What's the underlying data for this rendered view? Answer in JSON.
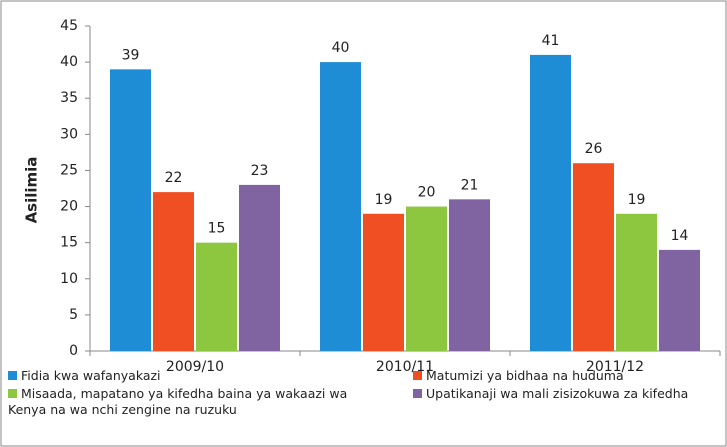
{
  "chart_data": {
    "type": "bar",
    "y_label": "Asilimia",
    "categories": [
      "2009/10",
      "2010/11",
      "2011/12"
    ],
    "series": [
      {
        "name": "Fidia kwa wafanyakazi",
        "color": "#1f8dd6",
        "values": [
          39,
          40,
          41
        ]
      },
      {
        "name": "Matumizi ya bidhaa na huduma",
        "color": "#f04e23",
        "values": [
          22,
          19,
          26
        ]
      },
      {
        "name": "Misaada, mapatano ya kifedha baina ya wakaazi wa Kenya na wa nchi zengine na ruzuku",
        "color": "#8dc63f",
        "values": [
          15,
          20,
          19
        ]
      },
      {
        "name": "Upatikanaji wa mali zisizokuwa za kifedha",
        "color": "#8064a2",
        "values": [
          23,
          21,
          14
        ]
      }
    ],
    "ylim": [
      0,
      45
    ],
    "yticks": [
      0,
      5,
      10,
      15,
      20,
      25,
      30,
      35,
      40,
      45
    ],
    "legend": "bottom"
  }
}
